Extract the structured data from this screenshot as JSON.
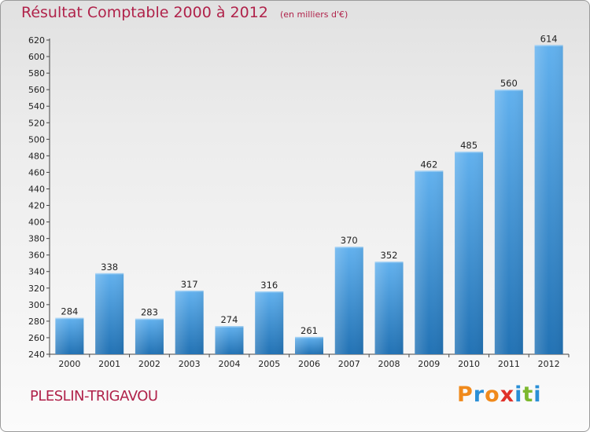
{
  "title": "Résultat Comptable 2000 à 2012",
  "unit_note": "(en milliers d'€)",
  "commune": "PLESLIN-TRIGAVOU",
  "brand": {
    "letters": [
      "P",
      "r",
      "o",
      "x",
      "i",
      "t",
      "i"
    ],
    "colors": [
      "#f08a1c",
      "#2a8fd6",
      "#f08a1c",
      "#e0312a",
      "#2a8fd6",
      "#7cb82e",
      "#2a8fd6"
    ]
  },
  "colors": {
    "title": "#b0224a",
    "bar_top": "#62b1ee",
    "bar_bottom": "#2272b4"
  },
  "chart_data": {
    "type": "bar",
    "categories": [
      "2000",
      "2001",
      "2002",
      "2003",
      "2004",
      "2005",
      "2006",
      "2007",
      "2008",
      "2009",
      "2010",
      "2011",
      "2012"
    ],
    "values": [
      284,
      338,
      283,
      317,
      274,
      316,
      261,
      370,
      352,
      462,
      485,
      560,
      614
    ],
    "ylim": [
      240,
      620
    ],
    "yticks": [
      240,
      260,
      280,
      300,
      320,
      340,
      360,
      380,
      400,
      420,
      440,
      460,
      480,
      500,
      520,
      540,
      560,
      580,
      600,
      620
    ],
    "grid": false,
    "data_labels": true
  }
}
